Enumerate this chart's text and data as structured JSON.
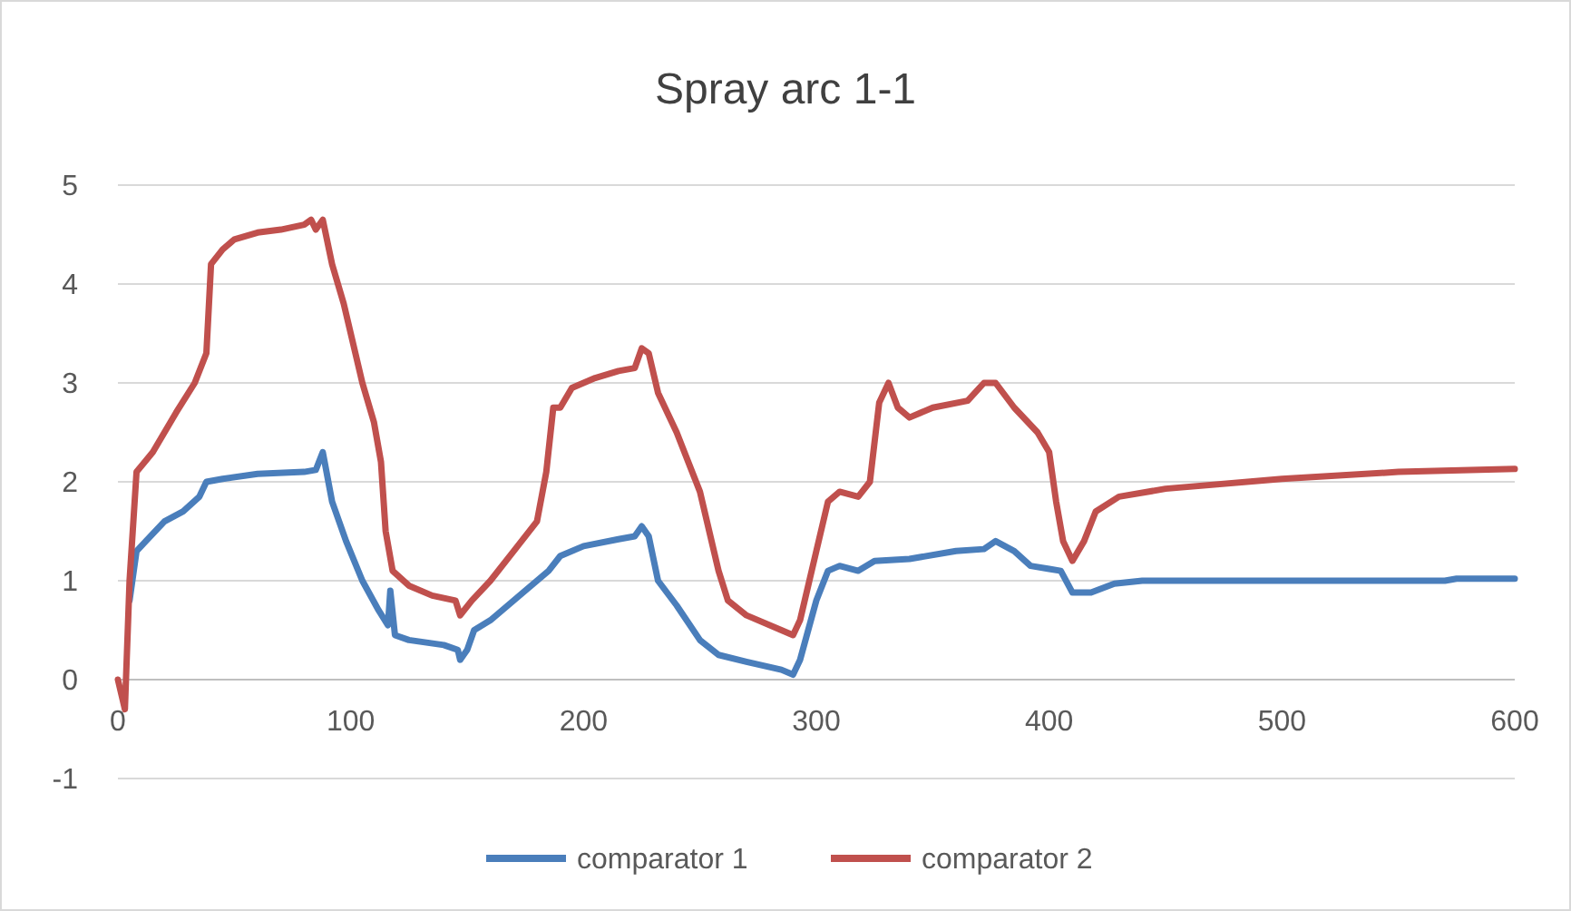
{
  "chart_data": {
    "type": "line",
    "title": "Spray arc 1-1",
    "xlim": [
      0,
      600
    ],
    "xticks": [
      0,
      100,
      200,
      300,
      400,
      500,
      600
    ],
    "ylim": [
      -1,
      5
    ],
    "yticks": [
      -1,
      0,
      1,
      2,
      3,
      4,
      5
    ],
    "grid": "y",
    "legend": "bottom",
    "line_style": "solid",
    "marker": "none",
    "series": [
      {
        "name": "comparator 1",
        "color": "#4a7ebb",
        "x": [
          5,
          8,
          12,
          20,
          28,
          35,
          38,
          45,
          60,
          80,
          85,
          88,
          92,
          98,
          105,
          112,
          116,
          117,
          119,
          125,
          140,
          146,
          147,
          150,
          153,
          160,
          175,
          185,
          190,
          200,
          215,
          222,
          225,
          228,
          232,
          240,
          250,
          258,
          270,
          285,
          290,
          293,
          300,
          305,
          310,
          318,
          325,
          340,
          360,
          372,
          377,
          385,
          392,
          400,
          405,
          410,
          418,
          428,
          440,
          570,
          575,
          600
        ],
        "values": [
          0.8,
          1.3,
          1.4,
          1.6,
          1.7,
          1.85,
          2,
          2.03,
          2.08,
          2.1,
          2.12,
          2.3,
          1.8,
          1.4,
          1,
          0.7,
          0.55,
          0.9,
          0.45,
          0.4,
          0.35,
          0.3,
          0.2,
          0.3,
          0.5,
          0.6,
          0.9,
          1.1,
          1.25,
          1.35,
          1.42,
          1.45,
          1.55,
          1.45,
          1,
          0.75,
          0.4,
          0.25,
          0.18,
          0.1,
          0.05,
          0.2,
          0.8,
          1.1,
          1.15,
          1.1,
          1.2,
          1.22,
          1.3,
          1.32,
          1.4,
          1.3,
          1.15,
          1.12,
          1.1,
          0.88,
          0.88,
          0.97,
          1,
          1,
          1.02,
          1.02
        ]
      },
      {
        "name": "comparator 2",
        "color": "#c0504d",
        "x": [
          0,
          3,
          5,
          8,
          15,
          25,
          33,
          38,
          40,
          45,
          50,
          60,
          70,
          80,
          83,
          85,
          88,
          92,
          97,
          105,
          110,
          113,
          115,
          118,
          125,
          135,
          145,
          147,
          152,
          160,
          170,
          180,
          184,
          187,
          190,
          195,
          205,
          215,
          222,
          225,
          228,
          232,
          240,
          250,
          258,
          262,
          270,
          285,
          290,
          293,
          300,
          305,
          310,
          318,
          323,
          327,
          331,
          335,
          340,
          350,
          365,
          372,
          377,
          385,
          395,
          400,
          403,
          406,
          410,
          415,
          420,
          430,
          450,
          500,
          550,
          600
        ],
        "values": [
          0,
          -0.3,
          1,
          2.1,
          2.3,
          2.7,
          3,
          3.3,
          4.2,
          4.35,
          4.45,
          4.52,
          4.55,
          4.6,
          4.65,
          4.55,
          4.65,
          4.2,
          3.8,
          3,
          2.6,
          2.2,
          1.5,
          1.1,
          0.95,
          0.85,
          0.8,
          0.65,
          0.8,
          1,
          1.3,
          1.6,
          2.1,
          2.75,
          2.75,
          2.95,
          3.05,
          3.12,
          3.15,
          3.35,
          3.3,
          2.9,
          2.5,
          1.9,
          1.1,
          0.8,
          0.65,
          0.5,
          0.45,
          0.6,
          1.3,
          1.8,
          1.9,
          1.85,
          2,
          2.8,
          3,
          2.75,
          2.65,
          2.75,
          2.82,
          3,
          3,
          2.75,
          2.5,
          2.3,
          1.8,
          1.4,
          1.2,
          1.4,
          1.7,
          1.85,
          1.93,
          2.03,
          2.1,
          2.13
        ]
      }
    ]
  }
}
